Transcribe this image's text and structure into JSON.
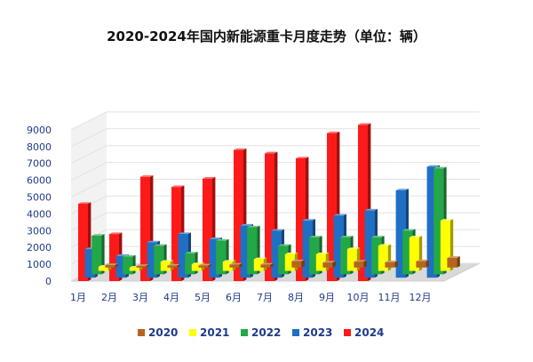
{
  "chart_data": {
    "type": "bar",
    "title": "2020-2024年国内新能源重卡月度走势（单位：辆）",
    "categories": [
      "1月",
      "2月",
      "3月",
      "4月",
      "5月",
      "6月",
      "7月",
      "8月",
      "9月",
      "10月",
      "11月",
      "12月"
    ],
    "y_ticks": [
      "0",
      "1000",
      "2000",
      "3000",
      "4000",
      "5000",
      "6000",
      "7000",
      "8000",
      "9000"
    ],
    "ylim": [
      0,
      9000
    ],
    "grid": true,
    "legend_position": "bottom",
    "series": [
      {
        "name": "2020",
        "color": "#b5651d",
        "values": [
          150,
          100,
          120,
          130,
          180,
          180,
          380,
          300,
          350,
          320,
          380,
          580
        ]
      },
      {
        "name": "2021",
        "color": "#ffff00",
        "values": [
          250,
          200,
          550,
          400,
          550,
          700,
          1000,
          1000,
          1300,
          1500,
          2000,
          3000
        ]
      },
      {
        "name": "2022",
        "color": "#22a846",
        "values": [
          2300,
          1050,
          1700,
          1250,
          2000,
          2800,
          1700,
          2200,
          2200,
          2200,
          2600,
          6300
        ]
      },
      {
        "name": "2023",
        "color": "#1f6fc5",
        "values": [
          1700,
          1300,
          2100,
          2600,
          2300,
          3100,
          2800,
          3400,
          3700,
          4000,
          5200,
          6600
        ]
      },
      {
        "name": "2024",
        "color": "#ff1a1a",
        "values": [
          4600,
          2800,
          6200,
          5600,
          6100,
          7800,
          7600,
          7300,
          8800,
          9300,
          null,
          null
        ]
      }
    ]
  }
}
